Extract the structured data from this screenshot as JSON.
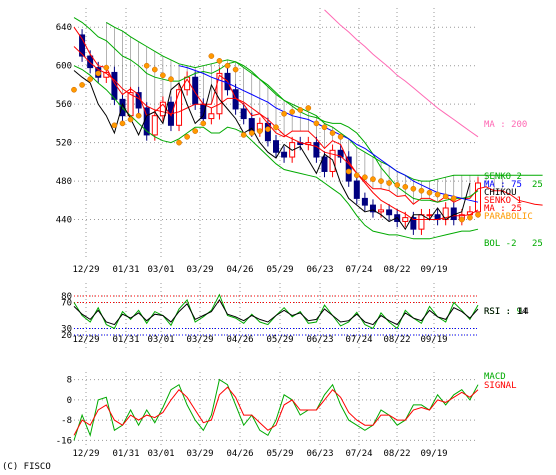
{
  "copyright": "(C) FISCO",
  "chart_data": {
    "type": "line",
    "x_ticks": [
      "12/29",
      "01/31",
      "03/01",
      "03/29",
      "04/26",
      "05/29",
      "06/23",
      "07/24",
      "08/22",
      "09/19"
    ],
    "colors": {
      "candle_up": "#ff0000",
      "candle_down": "#000080",
      "ma_short": "#ff0000",
      "ma_mid": "#0000ff",
      "ma200": "#ff69b4",
      "bol": "#00aa00",
      "senko_cloud": "#808080",
      "chikou": "#000000",
      "psar": "#ff9900",
      "rsi9": "#00aa00",
      "rsi14": "#000000",
      "macd": "#00aa00",
      "signal": "#ff0000"
    },
    "panels": [
      {
        "name": "price",
        "y_ticks": [
          640,
          600,
          560,
          520,
          480,
          440
        ],
        "ylim": [
          400,
          660
        ],
        "labels": [
          "MA : 200",
          "SENKO 2",
          "MA : 75",
          "CHIKOU",
          "SENKO 1",
          "MA : 25",
          "PARABOLIC",
          "BOL -2"
        ],
        "label_values": [
          "25"
        ],
        "series": [
          {
            "name": "close",
            "values": [
              632,
              610,
              598,
              588,
              593,
              565,
              548,
              572,
              556,
              528,
              548,
              562,
              538,
              575,
              588,
              560,
              545,
              550,
              592,
              575,
              555,
              545,
              532,
              540,
              522,
              510,
              505,
              520,
              518,
              520,
              505,
              490,
              512,
              505,
              480,
              462,
              455,
              448,
              450,
              445,
              438,
              442,
              430,
              445,
              445,
              440,
              452,
              440,
              445,
              448,
              478
            ]
          },
          {
            "name": "MA : 25",
            "values": [
              620,
              612,
              603,
              596,
              592,
              585,
              576,
              570,
              566,
              558,
              554,
              552,
              550,
              552,
              556,
              560,
              560,
              556,
              560,
              566,
              566,
              562,
              556,
              550,
              544,
              536,
              528,
              524,
              520,
              518,
              516,
              510,
              508,
              506,
              498,
              488,
              478,
              468,
              460,
              455,
              450,
              446,
              440,
              440,
              440,
              440,
              442,
              444,
              444,
              445,
              450
            ]
          },
          {
            "name": "MA : 75",
            "values": [
              null,
              null,
              null,
              null,
              null,
              null,
              null,
              null,
              null,
              null,
              null,
              null,
              null,
              600,
              598,
              595,
              592,
              588,
              585,
              582,
              578,
              574,
              570,
              566,
              562,
              556,
              552,
              548,
              546,
              544,
              540,
              536,
              532,
              528,
              524,
              518,
              514,
              508,
              502,
              496,
              490,
              486,
              480,
              476,
              472,
              468,
              466,
              464,
              462,
              460,
              458
            ]
          },
          {
            "name": "MA : 200",
            "values": [
              null,
              null,
              null,
              null,
              null,
              null,
              null,
              null,
              null,
              null,
              null,
              null,
              null,
              null,
              null,
              null,
              null,
              null,
              null,
              null,
              null,
              null,
              null,
              null,
              null,
              null,
              null,
              null,
              null,
              null,
              null,
              658,
              650,
              642,
              635,
              627,
              620,
              612,
              605,
              598,
              590,
              584,
              577,
              570,
              563,
              556,
              550,
              544,
              538,
              532,
              526
            ]
          },
          {
            "name": "SENKO 1",
            "values": [
              640,
              628,
              612,
              600,
              598,
              582,
              570,
              576,
              570,
              548,
              552,
              560,
              548,
              572,
              586,
              572,
              560,
              560,
              590,
              584,
              566,
              560,
              548,
              550,
              540,
              530,
              526,
              532,
              532,
              532,
              524,
              514,
              522,
              518,
              500,
              488,
              480,
              472,
              472,
              470,
              464,
              465,
              456,
              462,
              462,
              458,
              464,
              458,
              462,
              462,
              472,
              474,
              470,
              470,
              466,
              460,
              458,
              456,
              455
            ]
          },
          {
            "name": "SENKO 2",
            "values": [
              null,
              null,
              null,
              null,
              645,
              640,
              636,
              630,
              625,
              620,
              615,
              610,
              606,
              602,
              600,
              598,
              600,
              602,
              604,
              606,
              604,
              598,
              592,
              586,
              578,
              570,
              564,
              560,
              556,
              552,
              548,
              540,
              536,
              530,
              524,
              515,
              510,
              505,
              500,
              496,
              490,
              486,
              482,
              480,
              480,
              482,
              484,
              486,
              486,
              486,
              486,
              486,
              486,
              486,
              486,
              486,
              486,
              486,
              486
            ]
          },
          {
            "name": "CHIKOU",
            "values": [
              595,
              588,
              582,
              560,
              548,
              530,
              560,
              545,
              528,
              548,
              552,
              540,
              575,
              582,
              560,
              540,
              548,
              580,
              565,
              555,
              545,
              530,
              535,
              520,
              510,
              504,
              518,
              512,
              516,
              502,
              488,
              508,
              502,
              478,
              462,
              455,
              448,
              450,
              445,
              438,
              442,
              430,
              445,
              445,
              440,
              452,
              440,
              445,
              448,
              478
            ]
          },
          {
            "name": "BOL -2",
            "values": [
              600,
              596,
              590,
              582,
              575,
              566,
              556,
              548,
              540,
              532,
              526,
              522,
              520,
              524,
              530,
              536,
              536,
              530,
              530,
              536,
              534,
              530,
              522,
              514,
              506,
              498,
              492,
              490,
              488,
              486,
              484,
              478,
              472,
              466,
              456,
              444,
              434,
              428,
              426,
              424,
              424,
              422,
              420,
              420,
              420,
              422,
              424,
              426,
              428,
              428,
              430
            ]
          },
          {
            "name": "BOL +2",
            "values": [
              650,
              645,
              638,
              630,
              626,
              618,
              610,
              606,
              600,
              592,
              588,
              586,
              584,
              584,
              588,
              592,
              594,
              592,
              596,
              602,
              604,
              600,
              594,
              586,
              580,
              572,
              564,
              558,
              552,
              548,
              546,
              542,
              540,
              540,
              536,
              530,
              520,
              508,
              494,
              484,
              474,
              468,
              462,
              460,
              460,
              458,
              460,
              462,
              462,
              464,
              470
            ]
          },
          {
            "name": "PARABOLIC",
            "values": [
              575,
              580,
              586,
              592,
              598,
              538,
              540,
              544,
              548,
              600,
              596,
              590,
              586,
              520,
              526,
              532,
              540,
              610,
              605,
              600,
              596,
              528,
              530,
              532,
              534,
              536,
              550,
              552,
              554,
              556,
              540,
              536,
              530,
              526,
              490,
              486,
              484,
              482,
              480,
              478,
              476,
              474,
              472,
              470,
              468,
              466,
              464,
              462,
              440,
              442,
              445
            ]
          }
        ]
      },
      {
        "name": "rsi",
        "y_ticks": [
          80,
          70,
          30,
          20
        ],
        "ylim": [
          0,
          100
        ],
        "labels": [
          "RSI : 9",
          "RSI : 14"
        ],
        "label_values": [
          "14"
        ],
        "series": [
          {
            "name": "RSI : 9",
            "values": [
              70,
              50,
              40,
              62,
              36,
              30,
              56,
              44,
              58,
              38,
              56,
              50,
              35,
              60,
              74,
              40,
              48,
              58,
              82,
              50,
              46,
              38,
              52,
              40,
              36,
              50,
              62,
              48,
              56,
              38,
              40,
              66,
              50,
              34,
              40,
              55,
              36,
              30,
              54,
              40,
              30,
              58,
              46,
              38,
              64,
              48,
              40,
              70,
              58,
              44,
              66
            ]
          },
          {
            "name": "RSI : 14",
            "values": [
              64,
              52,
              44,
              58,
              40,
              36,
              52,
              46,
              54,
              42,
              52,
              50,
              40,
              56,
              68,
              44,
              50,
              56,
              74,
              52,
              48,
              42,
              50,
              44,
              40,
              50,
              58,
              50,
              54,
              42,
              44,
              60,
              50,
              40,
              42,
              52,
              40,
              36,
              50,
              42,
              36,
              54,
              46,
              42,
              58,
              48,
              44,
              62,
              56,
              46,
              60
            ]
          }
        ]
      },
      {
        "name": "macd",
        "y_ticks": [
          8,
          0,
          -8,
          -16
        ],
        "ylim": [
          -19,
          11
        ],
        "labels": [
          "MACD",
          "SIGNAL"
        ],
        "series": [
          {
            "name": "MACD",
            "values": [
              -16,
              -6,
              -14,
              0,
              1,
              -12,
              -10,
              -4,
              -10,
              -4,
              -9,
              -3,
              4,
              6,
              -2,
              -8,
              -12,
              -6,
              8,
              6,
              -2,
              -10,
              -6,
              -12,
              -14,
              -8,
              2,
              0,
              -6,
              -4,
              -4,
              2,
              6,
              -2,
              -8,
              -10,
              -12,
              -10,
              -4,
              -6,
              -10,
              -8,
              -2,
              -2,
              -4,
              2,
              -2,
              2,
              4,
              0,
              6
            ]
          },
          {
            "name": "SIGNAL",
            "values": [
              -14,
              -8,
              -10,
              -4,
              -2,
              -8,
              -10,
              -6,
              -8,
              -6,
              -7,
              -5,
              0,
              4,
              1,
              -4,
              -9,
              -8,
              2,
              5,
              1,
              -6,
              -6,
              -9,
              -12,
              -10,
              -2,
              0,
              -4,
              -4,
              -4,
              0,
              4,
              1,
              -5,
              -8,
              -10,
              -10,
              -6,
              -6,
              -8,
              -8,
              -4,
              -3,
              -4,
              0,
              -1,
              1,
              3,
              1,
              4
            ]
          }
        ]
      }
    ]
  }
}
